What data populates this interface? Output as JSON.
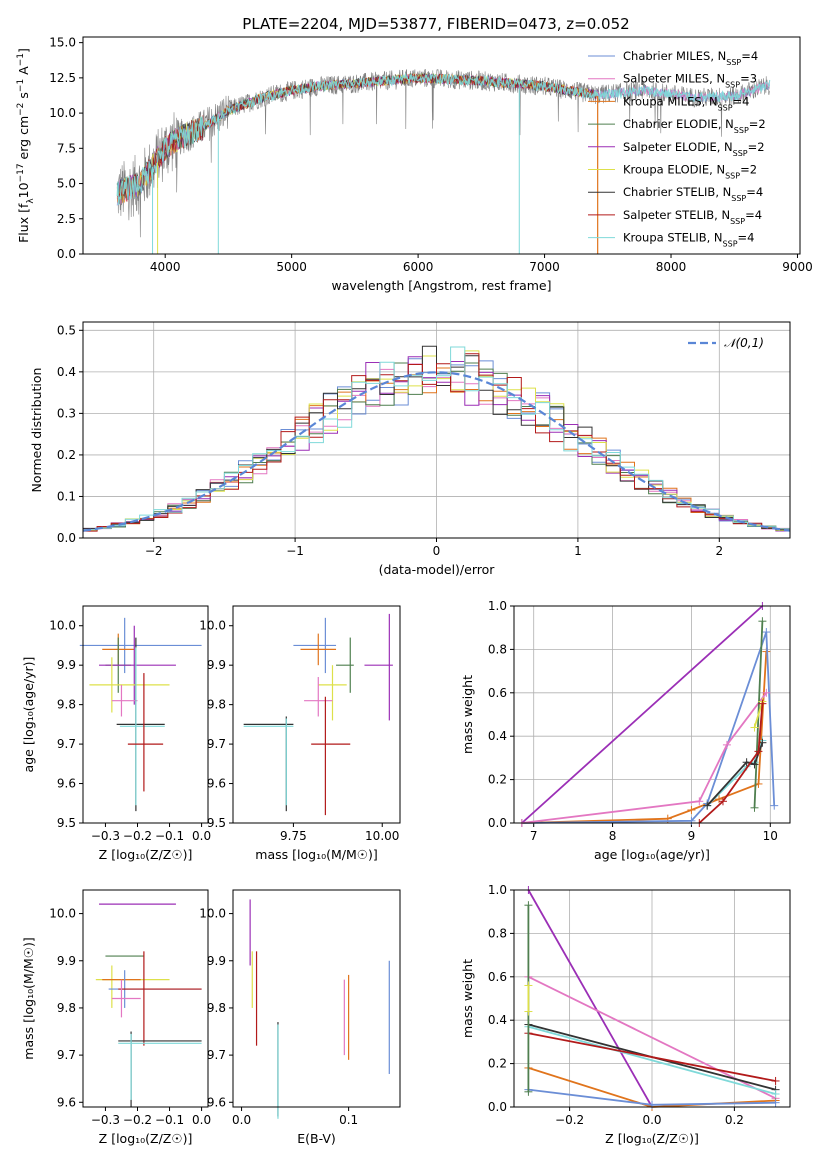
{
  "title": "PLATE=2204, MJD=53877, FIBERID=0473, z=0.052",
  "colors": {
    "Chabrier MILES": "#6b8ed6",
    "Salpeter MILES": "#e377c2",
    "Kroupa MILES": "#e0741c",
    "Chabrier ELODIE": "#4f7f4f",
    "Salpeter ELODIE": "#9b2fb6",
    "Kroupa ELODIE": "#dde04a",
    "Chabrier STELIB": "#333333",
    "Salpeter STELIB": "#b21a1a",
    "Kroupa STELIB": "#7fd9d9",
    "data": "#808080",
    "normal": "#5a86d6"
  },
  "legend_spectrum": [
    {
      "name": "Chabrier MILES",
      "nssp": "4"
    },
    {
      "name": "Salpeter MILES",
      "nssp": "3"
    },
    {
      "name": "Kroupa MILES",
      "nssp": "4"
    },
    {
      "name": "Chabrier ELODIE",
      "nssp": "2"
    },
    {
      "name": "Salpeter ELODIE",
      "nssp": "2"
    },
    {
      "name": "Kroupa ELODIE",
      "nssp": "2"
    },
    {
      "name": "Chabrier STELIB",
      "nssp": "4"
    },
    {
      "name": "Salpeter STELIB",
      "nssp": "4"
    },
    {
      "name": "Kroupa STELIB",
      "nssp": "4"
    }
  ],
  "chart_data": [
    {
      "id": "spectrum",
      "type": "line",
      "xlabel": "wavelength [Angstrom, rest frame]",
      "ylabel_parts": [
        "Flux [f",
        "λ",
        "10",
        "−17",
        " erg cm",
        "−2",
        " s",
        "−1",
        " A",
        "−1",
        "]"
      ],
      "xlim": [
        3350,
        9020
      ],
      "ylim": [
        0,
        15.4
      ],
      "xticks": [
        4000,
        5000,
        6000,
        7000,
        8000,
        9000
      ],
      "yticks": [
        0.0,
        2.5,
        5.0,
        7.5,
        10.0,
        12.5,
        15.0
      ],
      "data_range": [
        3620,
        8780
      ],
      "model_range": [
        3620,
        7420
      ],
      "continuum": [
        [
          3620,
          4.3
        ],
        [
          3800,
          5.0
        ],
        [
          3900,
          6.2
        ],
        [
          4000,
          7.5
        ],
        [
          4100,
          8.2
        ],
        [
          4300,
          9.0
        ],
        [
          4500,
          10.2
        ],
        [
          4800,
          11.2
        ],
        [
          5000,
          11.6
        ],
        [
          5200,
          11.9
        ],
        [
          5500,
          12.1
        ],
        [
          6000,
          12.5
        ],
        [
          6500,
          12.3
        ],
        [
          7000,
          11.9
        ],
        [
          7400,
          11.3
        ],
        [
          7800,
          11.6
        ],
        [
          8200,
          11.1
        ],
        [
          8500,
          11.2
        ],
        [
          8780,
          12.0
        ]
      ],
      "dropouts": [
        [
          3900,
          0.0
        ],
        [
          4420,
          0.0
        ],
        [
          6800,
          0.0
        ]
      ]
    },
    {
      "id": "residuals",
      "type": "bar",
      "xlabel": "(data-model)/error",
      "ylabel": "Normed distribution",
      "xlim": [
        -2.5,
        2.5
      ],
      "ylim": [
        0,
        0.52
      ],
      "xticks": [
        -2,
        -1,
        0,
        1,
        2
      ],
      "yticks": [
        0.0,
        0.1,
        0.2,
        0.3,
        0.4,
        0.5
      ],
      "legend": "𝒩(0,1)",
      "bin_width": 0.1
    },
    {
      "id": "age-vs-Z",
      "type": "scatter",
      "xlabel": "Z [log₁₀(Z/Z☉)]",
      "ylabel": "age  [log₁₀(age/yr)]",
      "xlim": [
        -0.37,
        0.02
      ],
      "ylim": [
        9.5,
        10.05
      ],
      "xticks": [
        -0.3,
        -0.2,
        -0.1,
        0.0
      ],
      "xticklabels": [
        "−0.3",
        "−0.2",
        "−0.1",
        "0.0"
      ],
      "yticks": [
        9.5,
        9.6,
        9.7,
        9.8,
        9.9,
        10.0
      ],
      "points": [
        {
          "model": "Chabrier MILES",
          "x": -0.24,
          "xerr": [
            0.14,
            0.24
          ],
          "y": 9.95,
          "yerr": [
            0.07,
            0.07
          ]
        },
        {
          "model": "Kroupa MILES",
          "x": -0.26,
          "xerr": [
            0.05,
            0.05
          ],
          "y": 9.94,
          "yerr": [
            0.04,
            0.04
          ]
        },
        {
          "model": "Chabrier ELODIE",
          "x": -0.26,
          "xerr": [
            0.04,
            0.04
          ],
          "y": 9.9,
          "yerr": [
            0.07,
            0.07
          ]
        },
        {
          "model": "Salpeter ELODIE",
          "x": -0.21,
          "xerr": [
            0.11,
            0.13
          ],
          "y": 9.9,
          "yerr": [
            0.1,
            0.1
          ]
        },
        {
          "model": "Kroupa ELODIE",
          "x": -0.28,
          "xerr": [
            0.07,
            0.18
          ],
          "y": 9.85,
          "yerr": [
            0.07,
            0.07
          ]
        },
        {
          "model": "Salpeter MILES",
          "x": -0.25,
          "xerr": [
            0.03,
            0.05
          ],
          "y": 9.81,
          "yerr": [
            0.04,
            0.04
          ]
        },
        {
          "model": "Chabrier STELIB",
          "x": -0.205,
          "xerr": [
            0.06,
            0.09
          ],
          "y": 9.75,
          "yerr": [
            0.22,
            0.22
          ]
        },
        {
          "model": "Kroupa STELIB",
          "x": -0.205,
          "xerr": [
            0.05,
            0.09
          ],
          "y": 9.745,
          "yerr": [
            0.2,
            0.2
          ]
        },
        {
          "model": "Salpeter STELIB",
          "x": -0.18,
          "xerr": [
            0.05,
            0.06
          ],
          "y": 9.7,
          "yerr": [
            0.12,
            0.18
          ]
        }
      ]
    },
    {
      "id": "age-vs-mass",
      "type": "scatter",
      "xlabel": "mass [log₁₀(M/M☉)]",
      "xlim": [
        9.58,
        10.05
      ],
      "ylim": [
        9.5,
        10.05
      ],
      "xticks": [
        9.75,
        10.0
      ],
      "xticklabels": [
        "9.75",
        "10.00"
      ],
      "yticks": [
        9.5,
        9.6,
        9.7,
        9.8,
        9.9,
        10.0
      ],
      "points": [
        {
          "model": "Chabrier MILES",
          "x": 9.84,
          "xerr": [
            0.09,
            0.03
          ],
          "y": 9.95,
          "yerr": [
            0.07,
            0.07
          ]
        },
        {
          "model": "Kroupa MILES",
          "x": 9.82,
          "xerr": [
            0.05,
            0.05
          ],
          "y": 9.94,
          "yerr": [
            0.04,
            0.04
          ]
        },
        {
          "model": "Chabrier ELODIE",
          "x": 9.91,
          "xerr": [
            0.04,
            0.01
          ],
          "y": 9.9,
          "yerr": [
            0.07,
            0.07
          ]
        },
        {
          "model": "Salpeter ELODIE",
          "x": 10.02,
          "xerr": [
            0.07,
            0.01
          ],
          "y": 9.9,
          "yerr": [
            0.14,
            0.13
          ]
        },
        {
          "model": "Kroupa ELODIE",
          "x": 9.86,
          "xerr": [
            0.04,
            0.04
          ],
          "y": 9.85,
          "yerr": [
            0.09,
            0.05
          ]
        },
        {
          "model": "Salpeter MILES",
          "x": 9.82,
          "xerr": [
            0.04,
            0.04
          ],
          "y": 9.81,
          "yerr": [
            0.04,
            0.06
          ]
        },
        {
          "model": "Chabrier STELIB",
          "x": 9.73,
          "xerr": [
            0.12,
            0.02
          ],
          "y": 9.75,
          "yerr": [
            0.22,
            0.02
          ]
        },
        {
          "model": "Kroupa STELIB",
          "x": 9.73,
          "xerr": [
            0.12,
            0.02
          ],
          "y": 9.745,
          "yerr": [
            0.2,
            0.02
          ]
        },
        {
          "model": "Salpeter STELIB",
          "x": 9.84,
          "xerr": [
            0.04,
            0.07
          ],
          "y": 9.7,
          "yerr": [
            0.18,
            0.12
          ]
        }
      ]
    },
    {
      "id": "weight-vs-age",
      "type": "line",
      "xlabel": "age  [log₁₀(age/yr)]",
      "ylabel": "mass weight",
      "xlim": [
        6.75,
        10.25
      ],
      "ylim": [
        0,
        1
      ],
      "xticks": [
        7,
        8,
        9,
        10
      ],
      "yticks": [
        0.0,
        0.2,
        0.4,
        0.6,
        0.8,
        1.0
      ],
      "series": [
        {
          "model": "Salpeter ELODIE",
          "x": [
            6.85,
            9.9
          ],
          "y": [
            0.0,
            1.0
          ]
        },
        {
          "model": "Kroupa MILES",
          "x": [
            6.85,
            8.7,
            9.0,
            9.35,
            9.85,
            9.95
          ],
          "y": [
            0.0,
            0.02,
            0.06,
            0.11,
            0.18,
            0.79
          ]
        },
        {
          "model": "Chabrier MILES",
          "x": [
            6.85,
            9.0,
            9.2,
            9.95,
            10.05
          ],
          "y": [
            0.0,
            0.01,
            0.09,
            0.88,
            0.08
          ]
        },
        {
          "model": "Salpeter MILES",
          "x": [
            6.85,
            9.1,
            9.45,
            9.95
          ],
          "y": [
            0.0,
            0.1,
            0.36,
            0.6
          ]
        },
        {
          "model": "Chabrier ELODIE",
          "x": [
            9.8,
            9.9
          ],
          "y": [
            0.07,
            0.93
          ]
        },
        {
          "model": "Kroupa ELODIE",
          "x": [
            9.8,
            9.9
          ],
          "y": [
            0.44,
            0.56
          ]
        },
        {
          "model": "Kroupa STELIB",
          "x": [
            9.2,
            9.7,
            9.8,
            9.9
          ],
          "y": [
            0.08,
            0.26,
            0.28,
            0.38
          ]
        },
        {
          "model": "Chabrier STELIB",
          "x": [
            9.2,
            9.7,
            9.8,
            9.9
          ],
          "y": [
            0.08,
            0.28,
            0.27,
            0.37
          ]
        },
        {
          "model": "Salpeter STELIB",
          "x": [
            9.1,
            9.4,
            9.85,
            9.9
          ],
          "y": [
            0.0,
            0.1,
            0.33,
            0.55
          ]
        }
      ]
    },
    {
      "id": "mass-vs-Z",
      "type": "scatter",
      "xlabel": "Z [log₁₀(Z/Z☉)]",
      "ylabel": "mass [log₁₀(M/M☉)]",
      "xlim": [
        -0.37,
        0.02
      ],
      "ylim": [
        9.59,
        10.05
      ],
      "xticks": [
        -0.3,
        -0.2,
        -0.1,
        0.0
      ],
      "xticklabels": [
        "−0.3",
        "−0.2",
        "−0.1",
        "0.0"
      ],
      "yticks": [
        9.6,
        9.7,
        9.8,
        9.9,
        10.0
      ],
      "points": [
        {
          "model": "Salpeter ELODIE",
          "x": -0.21,
          "xerr": [
            0.11,
            0.13
          ],
          "y": 10.02,
          "yerr": [
            0.0,
            0.0
          ]
        },
        {
          "model": "Chabrier ELODIE",
          "x": -0.26,
          "xerr": [
            0.04,
            0.08
          ],
          "y": 9.91,
          "yerr": [
            0.0,
            0.0
          ]
        },
        {
          "model": "Kroupa ELODIE",
          "x": -0.28,
          "xerr": [
            0.05,
            0.18
          ],
          "y": 9.86,
          "yerr": [
            0.06,
            0.03
          ]
        },
        {
          "model": "Kroupa MILES",
          "x": -0.26,
          "xerr": [
            0.05,
            0.07
          ],
          "y": 9.86,
          "yerr": [
            0.0,
            0.0
          ]
        },
        {
          "model": "Chabrier MILES",
          "x": -0.24,
          "xerr": [
            0.05,
            0.24
          ],
          "y": 9.84,
          "yerr": [
            0.04,
            0.04
          ]
        },
        {
          "model": "Salpeter STELIB",
          "x": -0.18,
          "xerr": [
            0.08,
            0.18
          ],
          "y": 9.84,
          "yerr": [
            0.12,
            0.08
          ]
        },
        {
          "model": "Salpeter MILES",
          "x": -0.25,
          "xerr": [
            0.03,
            0.06
          ],
          "y": 9.82,
          "yerr": [
            0.04,
            0.04
          ]
        },
        {
          "model": "Chabrier STELIB",
          "x": -0.22,
          "xerr": [
            0.04,
            0.22
          ],
          "y": 9.73,
          "yerr": [
            0.14,
            0.02
          ]
        },
        {
          "model": "Kroupa STELIB",
          "x": -0.22,
          "xerr": [
            0.04,
            0.22
          ],
          "y": 9.725,
          "yerr": [
            0.12,
            0.02
          ]
        }
      ]
    },
    {
      "id": "mass-vs-EBV",
      "type": "scatter",
      "xlabel": "E(B-V)",
      "xlim": [
        -0.008,
        0.148
      ],
      "ylim": [
        9.59,
        10.05
      ],
      "xticks": [
        0.0,
        0.1
      ],
      "xticklabels": [
        "0.0",
        "0.1"
      ],
      "yticks": [
        9.6,
        9.7,
        9.8,
        9.9,
        10.0
      ],
      "points": [
        {
          "model": "Salpeter ELODIE",
          "x": 0.008,
          "xerr": [
            0.0,
            0.0
          ],
          "y": 9.96,
          "yerr": [
            0.07,
            0.07
          ]
        },
        {
          "model": "Kroupa ELODIE",
          "x": 0.01,
          "xerr": [
            0.0,
            0.0
          ],
          "y": 9.86,
          "yerr": [
            0.06,
            0.06
          ]
        },
        {
          "model": "Salpeter STELIB",
          "x": 0.014,
          "xerr": [
            0.0,
            0.0
          ],
          "y": 9.82,
          "yerr": [
            0.1,
            0.1
          ]
        },
        {
          "model": "Chabrier STELIB",
          "x": 0.034,
          "xerr": [
            0.0,
            0.0
          ],
          "y": 9.67,
          "yerr": [
            0.1,
            0.1
          ]
        },
        {
          "model": "Kroupa STELIB",
          "x": 0.034,
          "xerr": [
            0.0,
            0.0
          ],
          "y": 9.665,
          "yerr": [
            0.1,
            0.1
          ]
        },
        {
          "model": "Salpeter MILES",
          "x": 0.096,
          "xerr": [
            0.0,
            0.0
          ],
          "y": 9.78,
          "yerr": [
            0.08,
            0.08
          ]
        },
        {
          "model": "Kroupa MILES",
          "x": 0.1,
          "xerr": [
            0.0,
            0.0
          ],
          "y": 9.78,
          "yerr": [
            0.09,
            0.09
          ]
        },
        {
          "model": "Chabrier MILES",
          "x": 0.138,
          "xerr": [
            0.0,
            0.0
          ],
          "y": 9.78,
          "yerr": [
            0.12,
            0.12
          ]
        }
      ]
    },
    {
      "id": "weight-vs-Z",
      "type": "line",
      "xlabel": "Z [log₁₀(Z/Z☉)]",
      "ylabel": "mass weight",
      "xlim": [
        -0.335,
        0.335
      ],
      "ylim": [
        0,
        1
      ],
      "xticks": [
        -0.2,
        0.0,
        0.2
      ],
      "xticklabels": [
        "−0.2",
        "0.0",
        "0.2"
      ],
      "yticks": [
        0.0,
        0.2,
        0.4,
        0.6,
        0.8,
        1.0
      ],
      "series": [
        {
          "model": "Salpeter ELODIE",
          "x": [
            -0.3,
            0.0
          ],
          "y": [
            1.0,
            0.0
          ]
        },
        {
          "model": "Salpeter MILES",
          "x": [
            -0.3,
            0.3
          ],
          "y": [
            0.6,
            0.04
          ]
        },
        {
          "model": "Kroupa MILES",
          "x": [
            -0.3,
            0.0,
            0.3
          ],
          "y": [
            0.18,
            0.0,
            0.03
          ]
        },
        {
          "model": "Chabrier MILES",
          "x": [
            -0.3,
            0.0,
            0.3
          ],
          "y": [
            0.08,
            0.01,
            0.02
          ]
        },
        {
          "model": "Chabrier STELIB",
          "x": [
            -0.3,
            0.3
          ],
          "y": [
            0.38,
            0.08
          ]
        },
        {
          "model": "Kroupa STELIB",
          "x": [
            -0.3,
            0.3
          ],
          "y": [
            0.37,
            0.06
          ]
        },
        {
          "model": "Salpeter STELIB",
          "x": [
            -0.3,
            0.3
          ],
          "y": [
            0.34,
            0.12
          ]
        },
        {
          "model": "Chabrier ELODIE",
          "x": [
            -0.3,
            -0.3
          ],
          "y": [
            0.07,
            0.93
          ]
        },
        {
          "model": "Kroupa ELODIE",
          "x": [
            -0.3,
            -0.3
          ],
          "y": [
            0.44,
            0.56
          ]
        }
      ]
    }
  ]
}
